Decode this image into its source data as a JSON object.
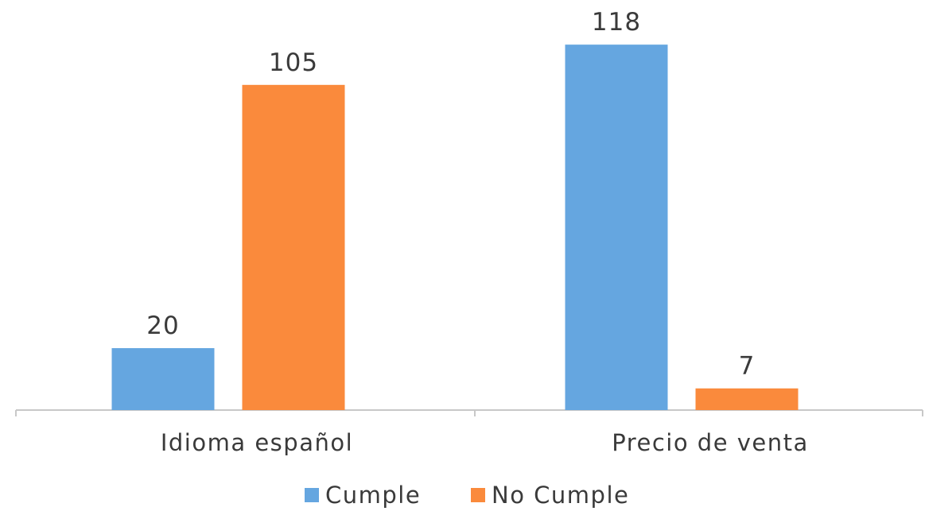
{
  "chart_data": {
    "type": "bar",
    "categories": [
      "Idioma español",
      "Precio de venta"
    ],
    "series": [
      {
        "name": "Cumple",
        "values": [
          20,
          118
        ],
        "color": "#65a6e0"
      },
      {
        "name": "No Cumple",
        "values": [
          105,
          7
        ],
        "color": "#fa8a3c"
      }
    ],
    "title": "",
    "xlabel": "",
    "ylabel": "",
    "ylim": [
      0,
      118
    ],
    "grid": false,
    "data_labels": true,
    "legend_position": "bottom"
  }
}
